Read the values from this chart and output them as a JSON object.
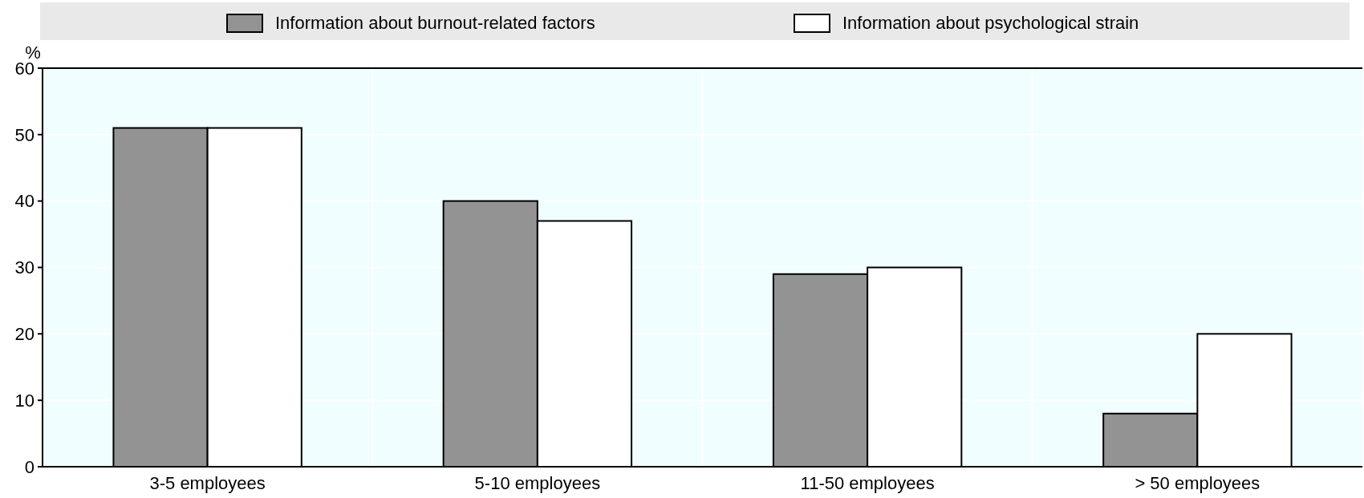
{
  "chart_data": {
    "type": "bar",
    "ylabel": "%",
    "categories": [
      "3-5 employees",
      "5-10 employees",
      "11-50 employees",
      "> 50 employees"
    ],
    "series": [
      {
        "name": "Information about burnout-related factors",
        "color": "#939393",
        "values": [
          51,
          40,
          29,
          8
        ]
      },
      {
        "name": "Information about psychological strain",
        "color": "#ffffff",
        "values": [
          51,
          37,
          30,
          20
        ]
      }
    ],
    "ylim": [
      0,
      60
    ],
    "yticks": [
      0,
      10,
      20,
      30,
      40,
      50,
      60
    ],
    "grid": true,
    "legend": "top"
  }
}
